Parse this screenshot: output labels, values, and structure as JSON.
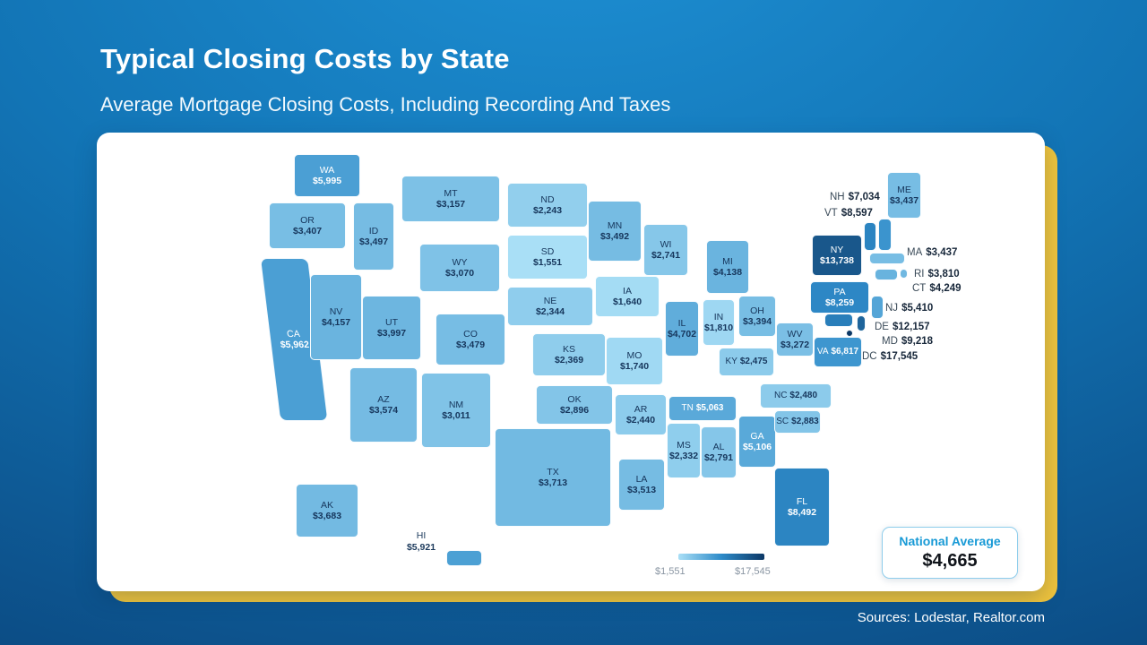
{
  "page": {
    "title": "Typical Closing Costs by State",
    "subtitle": "Average Mortgage Closing Costs, Including Recording And Taxes",
    "source": "Sources: Lodestar, Realtor.com"
  },
  "national_average": {
    "label": "National Average",
    "value": "$4,665"
  },
  "legend": {
    "min_label": "$1,551",
    "max_label": "$17,545"
  },
  "colors": {
    "background_top": "#1E90D4",
    "background_bottom": "#0A4076",
    "card_accent_yellow": "#F0C43C",
    "scale_light": "#A9DFF6",
    "scale_mid": "#2E8BC9",
    "scale_dark": "#0C3866",
    "national_average_label_blue": "#189AD6"
  },
  "chart_data": {
    "type": "heatmap",
    "subtype": "us-state-choropleth",
    "title": "Typical Closing Costs by State",
    "subtitle": "Average Mortgage Closing Costs, Including Recording And Taxes",
    "unit": "USD",
    "value_range": [
      1551,
      17545
    ],
    "national_average": 4665,
    "legend_position": "bottom-center",
    "states": [
      {
        "abbr": "WA",
        "value": 5995
      },
      {
        "abbr": "OR",
        "value": 3407
      },
      {
        "abbr": "CA",
        "value": 5962
      },
      {
        "abbr": "ID",
        "value": 3497
      },
      {
        "abbr": "NV",
        "value": 4157
      },
      {
        "abbr": "MT",
        "value": 3157
      },
      {
        "abbr": "WY",
        "value": 3070
      },
      {
        "abbr": "UT",
        "value": 3997
      },
      {
        "abbr": "CO",
        "value": 3479
      },
      {
        "abbr": "AZ",
        "value": 3574
      },
      {
        "abbr": "NM",
        "value": 3011
      },
      {
        "abbr": "ND",
        "value": 2243
      },
      {
        "abbr": "SD",
        "value": 1551
      },
      {
        "abbr": "NE",
        "value": 2344
      },
      {
        "abbr": "KS",
        "value": 2369
      },
      {
        "abbr": "OK",
        "value": 2896
      },
      {
        "abbr": "TX",
        "value": 3713
      },
      {
        "abbr": "MN",
        "value": 3492
      },
      {
        "abbr": "IA",
        "value": 1640
      },
      {
        "abbr": "MO",
        "value": 1740
      },
      {
        "abbr": "AR",
        "value": 2440
      },
      {
        "abbr": "LA",
        "value": 3513
      },
      {
        "abbr": "WI",
        "value": 2741
      },
      {
        "abbr": "IL",
        "value": 4702
      },
      {
        "abbr": "MS",
        "value": 2332
      },
      {
        "abbr": "MI",
        "value": 4138
      },
      {
        "abbr": "IN",
        "value": 1810
      },
      {
        "abbr": "KY",
        "value": 2475
      },
      {
        "abbr": "TN",
        "value": 5063
      },
      {
        "abbr": "AL",
        "value": 2791
      },
      {
        "abbr": "OH",
        "value": 3394
      },
      {
        "abbr": "GA",
        "value": 5106
      },
      {
        "abbr": "WV",
        "value": 3272
      },
      {
        "abbr": "VA",
        "value": 6817
      },
      {
        "abbr": "NC",
        "value": 2480
      },
      {
        "abbr": "SC",
        "value": 2883
      },
      {
        "abbr": "FL",
        "value": 8492
      },
      {
        "abbr": "AK",
        "value": 3683
      },
      {
        "abbr": "HI",
        "value": 5921
      },
      {
        "abbr": "NY",
        "value": 13738
      },
      {
        "abbr": "PA",
        "value": 8259
      },
      {
        "abbr": "ME",
        "value": 3437
      },
      {
        "abbr": "NH",
        "value": 7034
      },
      {
        "abbr": "VT",
        "value": 8597
      },
      {
        "abbr": "MA",
        "value": 3437
      },
      {
        "abbr": "RI",
        "value": 3810
      },
      {
        "abbr": "CT",
        "value": 4249
      },
      {
        "abbr": "NJ",
        "value": 5410
      },
      {
        "abbr": "DE",
        "value": 12157
      },
      {
        "abbr": "MD",
        "value": 9218
      },
      {
        "abbr": "DC",
        "value": 17545
      }
    ]
  }
}
